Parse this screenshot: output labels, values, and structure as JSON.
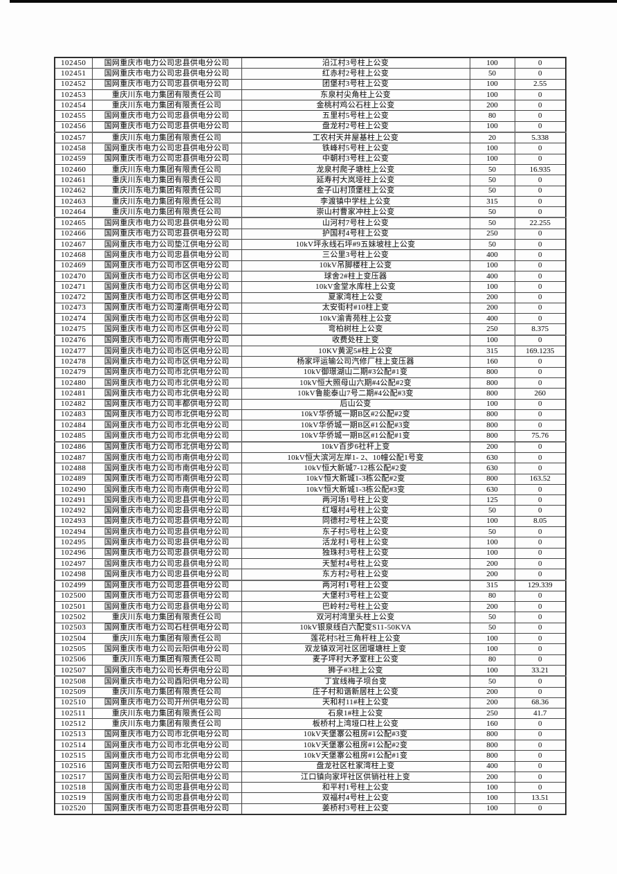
{
  "page": {
    "colors": {
      "page_bg": "#fdfdfd",
      "grid": "#434343",
      "text": "#1c1c1c",
      "top_bar": "#0a0a0a"
    }
  },
  "table": {
    "rows": [
      [
        "102450",
        "国网重庆市电力公司忠县供电分公司",
        "沿江村3号柱上公变",
        "100",
        "0"
      ],
      [
        "102451",
        "国网重庆市电力公司忠县供电分公司",
        "红赤村2号柱上公变",
        "50",
        "0"
      ],
      [
        "102452",
        "国网重庆市电力公司忠县供电分公司",
        "团堡村3号柱上公变",
        "100",
        "2.55"
      ],
      [
        "102453",
        "重庆川东电力集团有限责任公司",
        "东泉村尖角柱上公变",
        "100",
        "0"
      ],
      [
        "102454",
        "重庆川东电力集团有限责任公司",
        "金桃村鸡公石柱上公变",
        "200",
        "0"
      ],
      [
        "102455",
        "国网重庆市电力公司忠县供电分公司",
        "五里村5号柱上公变",
        "80",
        "0"
      ],
      [
        "102456",
        "国网重庆市电力公司忠县供电分公司",
        "盘龙村2号柱上公变",
        "100",
        "0"
      ],
      [
        "102457",
        "重庆川东电力集团有限责任公司",
        "工农村天井屋基柱上公变",
        "20",
        "5.338"
      ],
      [
        "102458",
        "国网重庆市电力公司忠县供电分公司",
        "铁峰村5号柱上公变",
        "100",
        "0"
      ],
      [
        "102459",
        "国网重庆市电力公司忠县供电分公司",
        "中朝村3号柱上公变",
        "100",
        "0"
      ],
      [
        "102460",
        "重庆川东电力集团有限责任公司",
        "龙泉村爬子塘柱上公变",
        "50",
        "16.935"
      ],
      [
        "102461",
        "重庆川东电力集团有限责任公司",
        "延寿村大岚垭柱上公变",
        "50",
        "0"
      ],
      [
        "102462",
        "重庆川东电力集团有限责任公司",
        "金子山村顶堡柱上公变",
        "50",
        "0"
      ],
      [
        "102463",
        "重庆川东电力集团有限责任公司",
        "李渡镇中学柱上公变",
        "315",
        "0"
      ],
      [
        "102464",
        "重庆川东电力集团有限责任公司",
        "崇山村曹家冲柱上公变",
        "50",
        "0"
      ],
      [
        "102465",
        "国网重庆市电力公司忠县供电分公司",
        "山河村7号柱上公变",
        "50",
        "22.255"
      ],
      [
        "102466",
        "国网重庆市电力公司忠县供电分公司",
        "护国村4号柱上公变",
        "250",
        "0"
      ],
      [
        "102467",
        "国网重庆市电力公司垫江供电分公司",
        "10kV坪永线石坪#9五妹坡柱上公变",
        "50",
        "0"
      ],
      [
        "102468",
        "国网重庆市电力公司忠县供电分公司",
        "三公里3号柱上公变",
        "400",
        "0"
      ],
      [
        "102469",
        "国网重庆市电力公司市区供电分公司",
        "10kV吊脚楼柱上公变",
        "100",
        "0"
      ],
      [
        "102470",
        "国网重庆市电力公司市区供电分公司",
        "球舍2#柱上变压器",
        "400",
        "0"
      ],
      [
        "102471",
        "国网重庆市电力公司市区供电分公司",
        "10kV金堂水库柱上公变",
        "100",
        "0"
      ],
      [
        "102472",
        "国网重庆市电力公司市区供电分公司",
        "夏家湾柱上公变",
        "200",
        "0"
      ],
      [
        "102473",
        "国网重庆市电力公司潼南供电分公司",
        "太安街村#10柱上变",
        "200",
        "0"
      ],
      [
        "102474",
        "国网重庆市电力公司市区供电分公司",
        "10kV渝青苑柱上公变",
        "400",
        "0"
      ],
      [
        "102475",
        "国网重庆市电力公司市区供电分公司",
        "弯柏树柱上公变",
        "250",
        "8.375"
      ],
      [
        "102476",
        "国网重庆市电力公司市南供电分公司",
        "收费处柱上变",
        "100",
        "0"
      ],
      [
        "102477",
        "国网重庆市电力公司市区供电分公司",
        "10KV黄泥5#柱上公变",
        "315",
        "169.1235"
      ],
      [
        "102478",
        "国网重庆市电力公司市区供电分公司",
        "杨家坪运输公司汽修厂柱上变压器",
        "160",
        "0"
      ],
      [
        "102479",
        "国网重庆市电力公司市北供电分公司",
        "10kV御璟湖山二期#3公配#1变",
        "800",
        "0"
      ],
      [
        "102480",
        "国网重庆市电力公司市北供电分公司",
        "10kV恒大照母山六期#4公配#2变",
        "800",
        "0"
      ],
      [
        "102481",
        "国网重庆市电力公司市北供电分公司",
        "10kV鲁能泰山7号二期#4公配#3变",
        "800",
        "260"
      ],
      [
        "102482",
        "国网重庆市电力公司丰都供电分公司",
        "后山公变",
        "100",
        "0"
      ],
      [
        "102483",
        "国网重庆市电力公司市北供电分公司",
        "10kV华侨城一期B区#2公配#2变",
        "800",
        "0"
      ],
      [
        "102484",
        "国网重庆市电力公司市北供电分公司",
        "10kV华侨城一期B区#1公配#3变",
        "800",
        "0"
      ],
      [
        "102485",
        "国网重庆市电力公司市北供电分公司",
        "10kV华侨城一期B区#1公配#1变",
        "800",
        "75.76"
      ],
      [
        "102486",
        "国网重庆市电力公司市北供电分公司",
        "10kV百步6社杆上变",
        "200",
        "0"
      ],
      [
        "102487",
        "国网重庆市电力公司市南供电分公司",
        "10kV恒大滨河左岸1- 2、10幢公配1号变",
        "630",
        "0"
      ],
      [
        "102488",
        "国网重庆市电力公司市南供电分公司",
        "10kV恒大新城7-12栋公配#2变",
        "630",
        "0"
      ],
      [
        "102489",
        "国网重庆市电力公司市南供电分公司",
        "10kV恒大新城1-3栋公配#2变",
        "800",
        "163.52"
      ],
      [
        "102490",
        "国网重庆市电力公司市南供电分公司",
        "10kV恒大新城1-3栋公配#3变",
        "630",
        "0"
      ],
      [
        "102491",
        "国网重庆市电力公司忠县供电分公司",
        "两河场1号柱上公变",
        "125",
        "0"
      ],
      [
        "102492",
        "国网重庆市电力公司忠县供电分公司",
        "红堰村4号柱上公变",
        "50",
        "0"
      ],
      [
        "102493",
        "国网重庆市电力公司忠县供电分公司",
        "同德村2号柱上公变",
        "100",
        "8.05"
      ],
      [
        "102494",
        "国网重庆市电力公司忠县供电分公司",
        "东子村5号柱上公变",
        "50",
        "0"
      ],
      [
        "102495",
        "国网重庆市电力公司忠县供电分公司",
        "活龙村1号柱上公变",
        "100",
        "0"
      ],
      [
        "102496",
        "国网重庆市电力公司忠县供电分公司",
        "独珠村3号柱上公变",
        "100",
        "0"
      ],
      [
        "102497",
        "国网重庆市电力公司忠县供电分公司",
        "天堑村4号柱上公变",
        "200",
        "0"
      ],
      [
        "102498",
        "国网重庆市电力公司忠县供电分公司",
        "东方村2号柱上公变",
        "200",
        "0"
      ],
      [
        "102499",
        "国网重庆市电力公司忠县供电分公司",
        "两河村1号柱上公变",
        "315",
        "129.339"
      ],
      [
        "102500",
        "国网重庆市电力公司忠县供电分公司",
        "大堡村3号柱上公变",
        "80",
        "0"
      ],
      [
        "102501",
        "国网重庆市电力公司忠县供电分公司",
        "巴岭村2号柱上公变",
        "200",
        "0"
      ],
      [
        "102502",
        "重庆川东电力集团有限责任公司",
        "双河村湾里头柱上公变",
        "50",
        "0"
      ],
      [
        "102503",
        "国网重庆市电力公司石柱供电分公司",
        "10kV银泉线白六配变S11-50KVA",
        "50",
        "0"
      ],
      [
        "102504",
        "重庆川东电力集团有限责任公司",
        "莲花村5社三角杆柱上公变",
        "100",
        "0"
      ],
      [
        "102505",
        "国网重庆市电力公司云阳供电分公司",
        "双龙镇双河社区团堰塘柱上变",
        "100",
        "0"
      ],
      [
        "102506",
        "重庆川东电力集团有限责任公司",
        "麦子坪村大矛室柱上公变",
        "80",
        "0"
      ],
      [
        "102507",
        "国网重庆市电力公司长寿供电分公司",
        "狮子#3柱上公变",
        "100",
        "33.21"
      ],
      [
        "102508",
        "国网重庆市电力公司酉阳供电分公司",
        "丁宜线梅子坝台变",
        "50",
        "0"
      ],
      [
        "102509",
        "重庆川东电力集团有限责任公司",
        "庄子村和谐新居柱上公变",
        "200",
        "0"
      ],
      [
        "102510",
        "国网重庆市电力公司开州供电分公司",
        "天和村11#柱上公变",
        "200",
        "68.36"
      ],
      [
        "102511",
        "重庆川东电力集团有限责任公司",
        "石泉1#柱上公变",
        "250",
        "41.7"
      ],
      [
        "102512",
        "重庆川东电力集团有限责任公司",
        "板桥村上湾垭口柱上公变",
        "160",
        "0"
      ],
      [
        "102513",
        "国网重庆市电力公司市北供电分公司",
        "10kV天堡寨公租房#1公配#3变",
        "800",
        "0"
      ],
      [
        "102514",
        "国网重庆市电力公司市北供电分公司",
        "10kV天堡寨公租房#1公配#2变",
        "800",
        "0"
      ],
      [
        "102515",
        "国网重庆市电力公司市北供电分公司",
        "10kV天堡寨公租房#1公配#1变",
        "800",
        "0"
      ],
      [
        "102516",
        "国网重庆市电力公司云阳供电分公司",
        "盘龙社区杜家湾柱上变",
        "400",
        "0"
      ],
      [
        "102517",
        "国网重庆市电力公司云阳供电分公司",
        "江口镇向家坪社区供销社柱上变",
        "200",
        "0"
      ],
      [
        "102518",
        "国网重庆市电力公司忠县供电分公司",
        "和平村1号柱上公变",
        "100",
        "0"
      ],
      [
        "102519",
        "国网重庆市电力公司忠县供电分公司",
        "双福村4号柱上公变",
        "100",
        "13.51"
      ],
      [
        "102520",
        "国网重庆市电力公司忠县供电分公司",
        "姜桥村3号柱上公变",
        "100",
        "0"
      ]
    ]
  }
}
